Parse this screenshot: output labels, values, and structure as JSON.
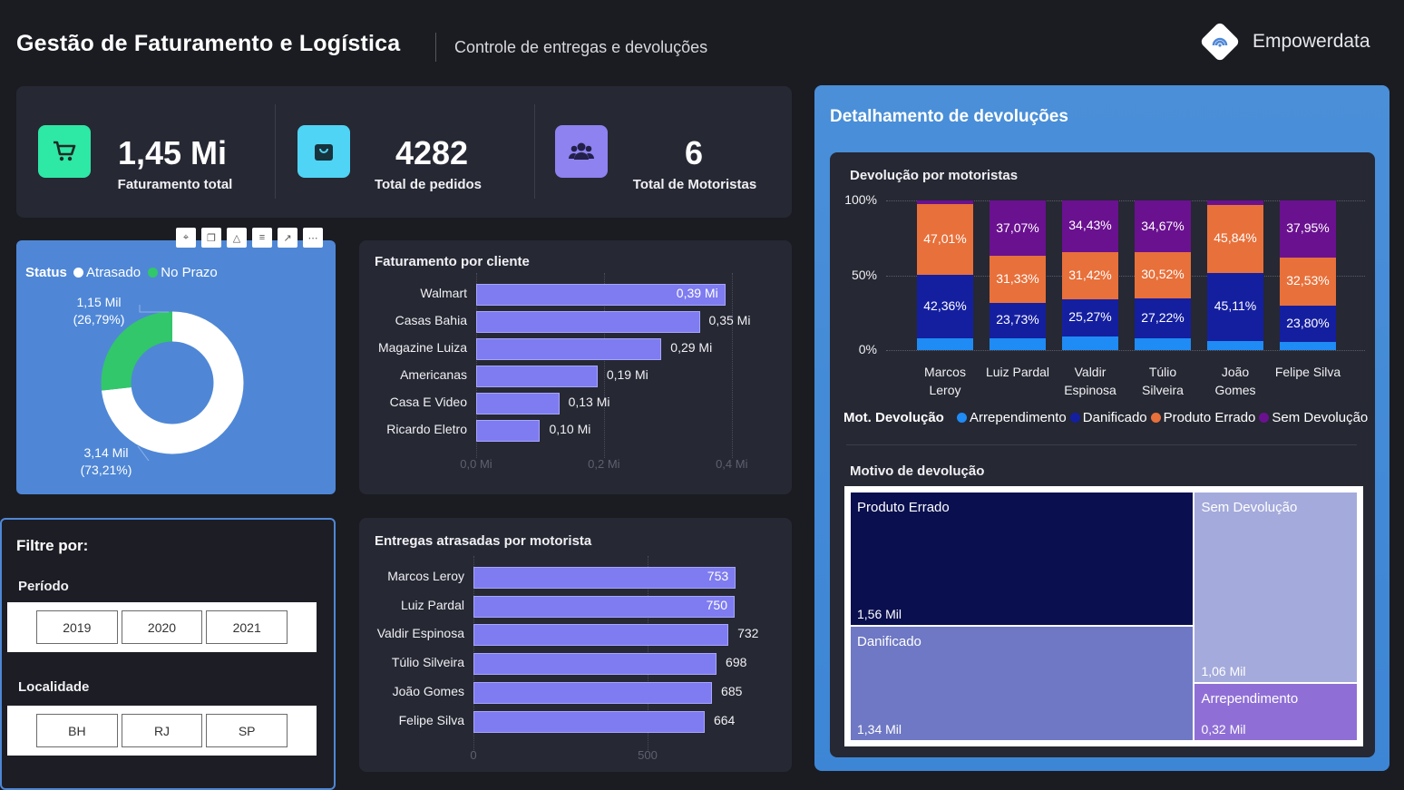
{
  "header": {
    "title": "Gestão de Faturamento e Logística",
    "subtitle": "Controle de entregas e devoluções",
    "brand": "Empowerdata"
  },
  "kpis": [
    {
      "value": "1,45 Mi",
      "label": "Faturamento total",
      "icon": "cart-icon",
      "color": "#2ee8a5"
    },
    {
      "value": "4282",
      "label": "Total de pedidos",
      "icon": "bag-icon",
      "color": "#4fd4f5"
    },
    {
      "value": "6",
      "label": "Total de Motoristas",
      "icon": "users-icon",
      "color": "#8d82f0"
    }
  ],
  "status_donut": {
    "legend_title": "Status",
    "legend": [
      {
        "label": "Atrasado",
        "color": "#ffffff"
      },
      {
        "label": "No Prazo",
        "color": "#32c76a"
      }
    ],
    "labels": {
      "no_prazo_value": "1,15 Mil",
      "no_prazo_pct": "(26,79%)",
      "atrasado_value": "3,14 Mil",
      "atrasado_pct": "(73,21%)"
    }
  },
  "billing_chart_title": "Faturamento por cliente",
  "delays_chart_title": "Entregas atrasadas por motorista",
  "filters": {
    "heading": "Filtre por:",
    "period_label": "Período",
    "periods": [
      "2019",
      "2020",
      "2021"
    ],
    "location_label": "Localidade",
    "locations": [
      "BH",
      "RJ",
      "SP"
    ]
  },
  "returns": {
    "panel_title": "Detalhamento de devoluções",
    "stacked_title": "Devolução por motoristas",
    "legend_title": "Mot. Devolução",
    "treemap_title": "Motivo de devolução"
  },
  "chart_data": [
    {
      "type": "bar",
      "orientation": "horizontal",
      "title": "Faturamento por cliente",
      "categories": [
        "Walmart",
        "Casas Bahia",
        "Magazine Luiza",
        "Americanas",
        "Casa E Video",
        "Ricardo Eletro"
      ],
      "values": [
        0.39,
        0.35,
        0.29,
        0.19,
        0.13,
        0.1
      ],
      "value_labels": [
        "0,39 Mi",
        "0,35 Mi",
        "0,29 Mi",
        "0,19 Mi",
        "0,13 Mi",
        "0,10 Mi"
      ],
      "xlim": [
        0,
        0.45
      ],
      "ticks": [
        0,
        0.2,
        0.4
      ],
      "tick_labels": [
        "0,0 Mi",
        "0,2 Mi",
        "0,4 Mi"
      ],
      "color": "#7e7cf0"
    },
    {
      "type": "bar",
      "orientation": "horizontal",
      "title": "Entregas atrasadas por motorista",
      "categories": [
        "Marcos Leroy",
        "Luiz Pardal",
        "Valdir Espinosa",
        "Túlio Silveira",
        "João Gomes",
        "Felipe Silva"
      ],
      "values": [
        753,
        750,
        732,
        698,
        685,
        664
      ],
      "value_labels": [
        "753",
        "750",
        "732",
        "698",
        "685",
        "664"
      ],
      "xlim": [
        0,
        750
      ],
      "ticks": [
        0,
        500
      ],
      "tick_labels": [
        "0",
        "500"
      ],
      "color": "#7e7cf0"
    },
    {
      "type": "pie",
      "subtype": "donut",
      "title": "Status",
      "series": [
        {
          "name": "Atrasado",
          "value": 3.14,
          "pct": 73.21,
          "color": "#ffffff"
        },
        {
          "name": "No Prazo",
          "value": 1.15,
          "pct": 26.79,
          "color": "#32c76a"
        }
      ]
    },
    {
      "type": "bar",
      "subtype": "stacked_100",
      "title": "Devolução por motoristas",
      "categories": [
        "Marcos Leroy",
        "Luiz Pardal",
        "Valdir Espinosa",
        "Túlio Silveira",
        "João Gomes",
        "Felipe Silva"
      ],
      "category_lines": [
        [
          "Marcos",
          "Leroy"
        ],
        [
          "Luiz Pardal"
        ],
        [
          "Valdir",
          "Espinosa"
        ],
        [
          "Túlio",
          "Silveira"
        ],
        [
          "João",
          "Gomes"
        ],
        [
          "Felipe Silva"
        ]
      ],
      "yticks": [
        "100%",
        "50%",
        "0%"
      ],
      "series": [
        {
          "name": "Arrependimento",
          "color": "#1f8bf5",
          "values": [
            8.0,
            7.9,
            8.9,
            7.6,
            6.3,
            5.7
          ],
          "labels": [
            "",
            "",
            "",
            "",
            "",
            ""
          ]
        },
        {
          "name": "Danificado",
          "color": "#141fa0",
          "values": [
            42.36,
            23.73,
            25.27,
            27.22,
            45.11,
            23.8
          ],
          "labels": [
            "42,36%",
            "23,73%",
            "25,27%",
            "27,22%",
            "45,11%",
            "23,80%"
          ]
        },
        {
          "name": "Produto Errado",
          "color": "#e8703a",
          "values": [
            47.01,
            31.33,
            31.42,
            30.52,
            45.84,
            32.53
          ],
          "labels": [
            "47,01%",
            "31,33%",
            "31,42%",
            "30,52%",
            "45,84%",
            "32,53%"
          ]
        },
        {
          "name": "Sem Devolução",
          "color": "#6a1190",
          "values": [
            2.63,
            37.07,
            34.43,
            34.67,
            2.75,
            37.95
          ],
          "labels": [
            "",
            "37,07%",
            "34,43%",
            "34,67%",
            "",
            "37,95%"
          ]
        }
      ]
    },
    {
      "type": "treemap",
      "title": "Motivo de devolução",
      "items": [
        {
          "name": "Produto Errado",
          "value": 1.56,
          "label": "1,56 Mil",
          "color": "#0a0f4f"
        },
        {
          "name": "Danificado",
          "value": 1.34,
          "label": "1,34 Mil",
          "color": "#6e78c4"
        },
        {
          "name": "Sem Devolução",
          "value": 1.06,
          "label": "1,06 Mil",
          "color": "#a4aadb"
        },
        {
          "name": "Arrependimento",
          "value": 0.32,
          "label": "0,32 Mil",
          "color": "#8f6fd6"
        }
      ]
    }
  ]
}
